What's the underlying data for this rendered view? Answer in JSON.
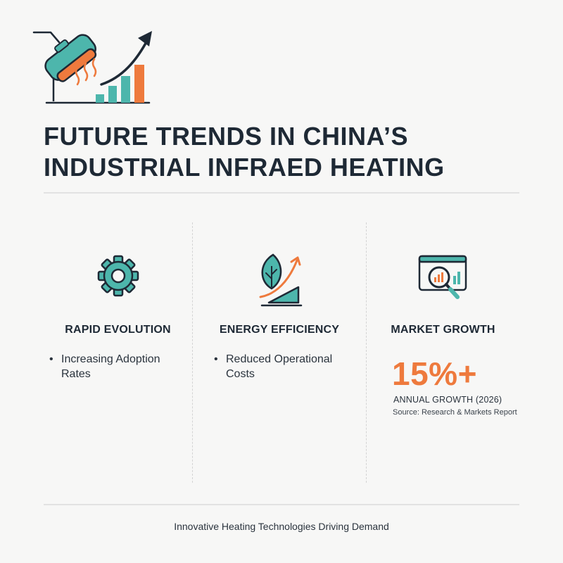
{
  "header": {
    "icon": "infrared-heater-growth-icon",
    "title_line1": "FUTURE TRENDS IN CHINA’S",
    "title_line2": "INDUSTRIAL INFRAED HEATING"
  },
  "columns": [
    {
      "icon": "gear-icon",
      "heading": "RAPID EVOLUTION",
      "bullet": "Increasing Adoption Rates"
    },
    {
      "icon": "leaf-growth-icon",
      "heading": "ENERGY EFFICIENCY",
      "bullet": "Reduced Operational Costs"
    },
    {
      "icon": "market-analysis-icon",
      "heading": "MARKET GROWTH",
      "value": "15%+",
      "value_label": "ANNUAL GROWTH (2026)",
      "source": "Source: Research & Markets Report"
    }
  ],
  "footer": {
    "text": "Innovative Heating Technologies Driving Demand"
  },
  "colors": {
    "teal": "#4db6ac",
    "orange": "#ee7a3d",
    "navy": "#1e2935",
    "background": "#f7f7f6"
  }
}
